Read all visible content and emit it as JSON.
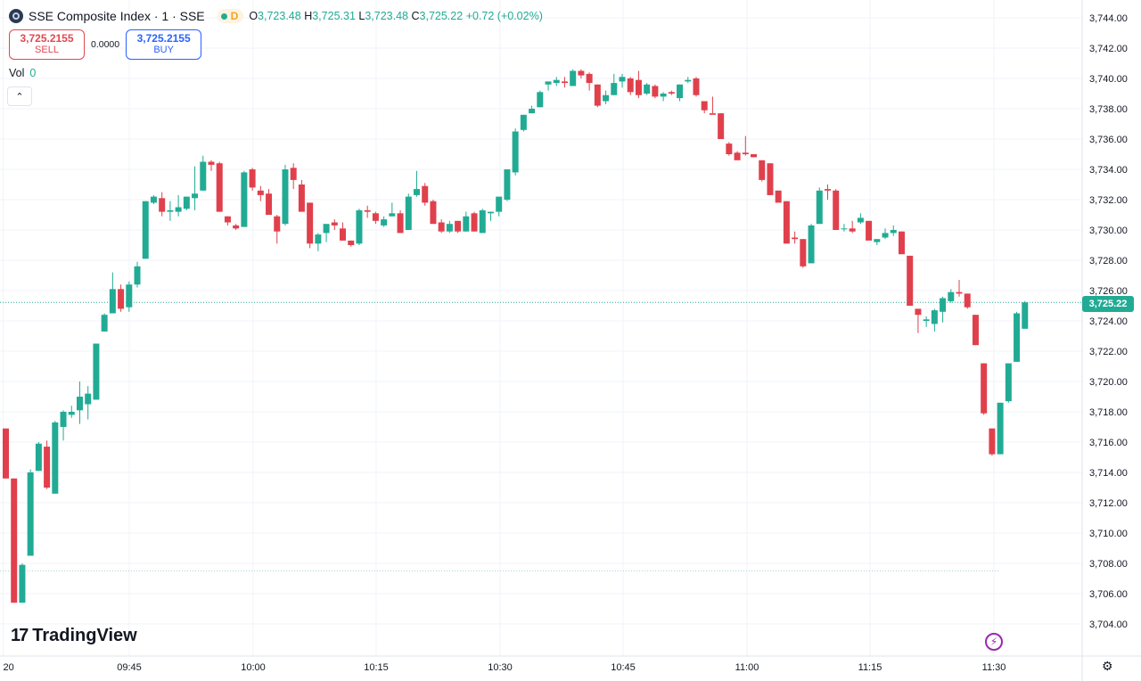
{
  "header": {
    "title": "SSE Composite Index · 1 · SSE",
    "badge": "D",
    "ohlc": {
      "o_label": "O",
      "o_value": "3,723.48",
      "h_label": "H",
      "h_value": "3,725.31",
      "l_label": "L",
      "l_value": "3,723.48",
      "c_label": "C",
      "c_value": "3,725.22",
      "change": "+0.72 (+0.02%)"
    }
  },
  "trade": {
    "sell_price": "3,725.2155",
    "sell_label": "SELL",
    "spread": "0.0000",
    "buy_price": "3,725.2155",
    "buy_label": "BUY"
  },
  "volume": {
    "label": "Vol",
    "value": "0"
  },
  "branding": {
    "name": "TradingView"
  },
  "last_price_label": "3,725.22",
  "colors": {
    "up": "#22ab94",
    "down": "#e0404c",
    "grid": "#f0f3fa",
    "axis_text": "#131722"
  },
  "icons": {
    "collapse": "chevron-up-icon",
    "bolt": "lightning-icon",
    "settings": "gear-icon"
  },
  "chart_data": {
    "type": "candlestick",
    "ylim": [
      3703,
      3745
    ],
    "y_ticks": [
      "3,704.00",
      "3,706.00",
      "3,708.00",
      "3,710.00",
      "3,712.00",
      "3,714.00",
      "3,716.00",
      "3,718.00",
      "3,720.00",
      "3,722.00",
      "3,724.00",
      "3,726.00",
      "3,728.00",
      "3,730.00",
      "3,732.00",
      "3,734.00",
      "3,736.00",
      "3,738.00",
      "3,740.00",
      "3,742.00",
      "3,744.00"
    ],
    "x_ticks": [
      "20",
      "09:45",
      "10:00",
      "10:15",
      "10:30",
      "10:45",
      "11:00",
      "11:15",
      "11:30"
    ],
    "last_close": 3725.22,
    "reference_line": 3707.5,
    "candles": [
      [
        3716.9,
        3716.9,
        3713.6,
        3713.6
      ],
      [
        3713.6,
        3713.6,
        3705.4,
        3705.4
      ],
      [
        3705.4,
        3708.0,
        3705.4,
        3707.9
      ],
      [
        3708.5,
        3714.2,
        3708.5,
        3714.0
      ],
      [
        3714.1,
        3716.0,
        3714.1,
        3715.9
      ],
      [
        3715.7,
        3716.1,
        3712.9,
        3713.0
      ],
      [
        3712.6,
        3717.4,
        3712.6,
        3717.3
      ],
      [
        3717.0,
        3718.1,
        3716.1,
        3718.0
      ],
      [
        3717.8,
        3718.4,
        3717.6,
        3718.0
      ],
      [
        3718.1,
        3720.0,
        3717.2,
        3719.0
      ],
      [
        3718.5,
        3719.7,
        3717.5,
        3719.2
      ],
      [
        3718.8,
        3722.5,
        3718.8,
        3722.5
      ],
      [
        3723.3,
        3724.5,
        3723.3,
        3724.4
      ],
      [
        3724.5,
        3727.2,
        3724.5,
        3726.1
      ],
      [
        3726.1,
        3726.4,
        3724.6,
        3724.8
      ],
      [
        3724.9,
        3726.6,
        3724.6,
        3726.4
      ],
      [
        3726.4,
        3727.9,
        3726.2,
        3727.6
      ],
      [
        3728.1,
        3731.9,
        3728.1,
        3731.9
      ],
      [
        3731.8,
        3732.3,
        3731.7,
        3732.2
      ],
      [
        3732.1,
        3732.5,
        3730.9,
        3731.2
      ],
      [
        3731.2,
        3731.9,
        3730.6,
        3731.3
      ],
      [
        3731.2,
        3732.3,
        3730.9,
        3731.5
      ],
      [
        3731.4,
        3732.2,
        3731.3,
        3732.2
      ],
      [
        3732.1,
        3734.2,
        3731.3,
        3732.4
      ],
      [
        3732.6,
        3734.9,
        3732.6,
        3734.5
      ],
      [
        3734.5,
        3734.6,
        3733.9,
        3734.3
      ],
      [
        3734.4,
        3734.5,
        3731.2,
        3731.2
      ],
      [
        3730.9,
        3730.9,
        3730.3,
        3730.5
      ],
      [
        3730.3,
        3730.4,
        3730.0,
        3730.1
      ],
      [
        3730.2,
        3733.9,
        3730.2,
        3733.8
      ],
      [
        3734.0,
        3734.1,
        3732.6,
        3732.8
      ],
      [
        3732.6,
        3732.9,
        3731.9,
        3732.3
      ],
      [
        3732.4,
        3732.7,
        3731.0,
        3731.0
      ],
      [
        3730.9,
        3731.0,
        3729.1,
        3729.9
      ],
      [
        3730.4,
        3734.3,
        3730.3,
        3734.0
      ],
      [
        3734.1,
        3734.4,
        3732.7,
        3733.3
      ],
      [
        3733.0,
        3733.3,
        3731.3,
        3731.2
      ],
      [
        3731.8,
        3731.8,
        3728.8,
        3729.1
      ],
      [
        3729.1,
        3729.8,
        3728.6,
        3729.7
      ],
      [
        3729.8,
        3730.2,
        3729.2,
        3730.4
      ],
      [
        3730.5,
        3730.7,
        3730.0,
        3730.3
      ],
      [
        3730.1,
        3730.5,
        3729.3,
        3729.3
      ],
      [
        3729.3,
        3729.3,
        3728.9,
        3729.0
      ],
      [
        3729.1,
        3731.4,
        3729.0,
        3731.3
      ],
      [
        3731.3,
        3731.6,
        3730.8,
        3731.2
      ],
      [
        3731.1,
        3731.2,
        3730.4,
        3730.6
      ],
      [
        3730.3,
        3730.9,
        3730.2,
        3730.7
      ],
      [
        3730.9,
        3731.8,
        3730.9,
        3731.1
      ],
      [
        3731.1,
        3731.3,
        3729.8,
        3729.8
      ],
      [
        3730.0,
        3732.4,
        3730.0,
        3732.2
      ],
      [
        3732.3,
        3733.9,
        3732.2,
        3732.7
      ],
      [
        3732.9,
        3733.1,
        3731.6,
        3731.8
      ],
      [
        3731.9,
        3732.0,
        3730.5,
        3730.4
      ],
      [
        3730.5,
        3730.7,
        3729.8,
        3729.9
      ],
      [
        3729.9,
        3730.6,
        3729.8,
        3730.4
      ],
      [
        3730.6,
        3730.6,
        3729.8,
        3729.9
      ],
      [
        3729.9,
        3731.2,
        3729.9,
        3730.9
      ],
      [
        3731.1,
        3731.2,
        3729.9,
        3729.9
      ],
      [
        3729.8,
        3731.4,
        3729.8,
        3731.3
      ],
      [
        3731.1,
        3731.2,
        3730.6,
        3731.2
      ],
      [
        3731.2,
        3732.1,
        3730.9,
        3732.2
      ],
      [
        3732.0,
        3734.0,
        3731.9,
        3734.0
      ],
      [
        3733.8,
        3736.7,
        3733.6,
        3736.5
      ],
      [
        3736.6,
        3737.6,
        3736.5,
        3737.6
      ],
      [
        3737.7,
        3738.2,
        3737.7,
        3738.0
      ],
      [
        3738.1,
        3739.2,
        3738.1,
        3739.1
      ],
      [
        3739.6,
        3739.8,
        3739.2,
        3739.8
      ],
      [
        3739.7,
        3740.1,
        3739.5,
        3739.9
      ],
      [
        3739.8,
        3740.1,
        3739.4,
        3739.7
      ],
      [
        3739.5,
        3740.6,
        3739.5,
        3740.5
      ],
      [
        3740.5,
        3740.6,
        3740.0,
        3740.2
      ],
      [
        3740.3,
        3740.4,
        3739.2,
        3739.7
      ],
      [
        3739.6,
        3739.6,
        3738.1,
        3738.2
      ],
      [
        3738.5,
        3739.2,
        3738.3,
        3738.9
      ],
      [
        3738.9,
        3740.3,
        3738.9,
        3739.7
      ],
      [
        3739.8,
        3740.3,
        3739.4,
        3740.1
      ],
      [
        3740.0,
        3740.1,
        3738.9,
        3739.1
      ],
      [
        3739.9,
        3740.5,
        3738.7,
        3738.9
      ],
      [
        3739.0,
        3739.7,
        3738.9,
        3739.6
      ],
      [
        3739.5,
        3739.6,
        3738.7,
        3738.8
      ],
      [
        3738.8,
        3739.1,
        3738.5,
        3739.0
      ],
      [
        3739.1,
        3739.2,
        3738.9,
        3739.0
      ],
      [
        3738.7,
        3739.6,
        3738.5,
        3739.6
      ],
      [
        3739.8,
        3740.1,
        3739.7,
        3739.9
      ],
      [
        3740.0,
        3740.1,
        3738.8,
        3738.9
      ],
      [
        3738.5,
        3738.5,
        3737.7,
        3737.9
      ],
      [
        3737.7,
        3738.8,
        3737.7,
        3737.6
      ],
      [
        3737.7,
        3737.7,
        3736.0,
        3736.0
      ],
      [
        3735.7,
        3735.8,
        3734.9,
        3735.0
      ],
      [
        3735.1,
        3735.2,
        3734.7,
        3734.6
      ],
      [
        3735.1,
        3736.2,
        3734.9,
        3735.0
      ],
      [
        3735.0,
        3735.0,
        3734.8,
        3734.8
      ],
      [
        3734.6,
        3734.6,
        3733.2,
        3733.3
      ],
      [
        3734.4,
        3734.4,
        3732.3,
        3732.3
      ],
      [
        3732.6,
        3732.6,
        3731.9,
        3731.8
      ],
      [
        3731.9,
        3731.9,
        3729.1,
        3729.1
      ],
      [
        3729.5,
        3729.9,
        3729.1,
        3729.4
      ],
      [
        3729.4,
        3729.4,
        3727.5,
        3727.6
      ],
      [
        3727.8,
        3730.4,
        3727.8,
        3730.3
      ],
      [
        3730.4,
        3732.8,
        3730.4,
        3732.6
      ],
      [
        3732.7,
        3733.0,
        3732.0,
        3732.6
      ],
      [
        3732.6,
        3732.7,
        3730.0,
        3730.0
      ],
      [
        3730.1,
        3730.4,
        3729.9,
        3730.1
      ],
      [
        3730.1,
        3730.6,
        3729.8,
        3729.9
      ],
      [
        3730.5,
        3731.1,
        3730.4,
        3730.8
      ],
      [
        3730.6,
        3730.6,
        3729.4,
        3729.3
      ],
      [
        3729.2,
        3729.4,
        3729.0,
        3729.4
      ],
      [
        3729.5,
        3730.1,
        3729.4,
        3729.8
      ],
      [
        3729.8,
        3730.3,
        3729.6,
        3730.0
      ],
      [
        3729.9,
        3729.9,
        3728.4,
        3728.4
      ],
      [
        3728.3,
        3728.3,
        3725.2,
        3725.0
      ],
      [
        3724.8,
        3724.8,
        3723.2,
        3724.4
      ],
      [
        3724.0,
        3724.3,
        3723.6,
        3724.1
      ],
      [
        3723.8,
        3724.8,
        3723.3,
        3724.7
      ],
      [
        3724.6,
        3725.6,
        3723.9,
        3725.5
      ],
      [
        3725.3,
        3726.1,
        3725.2,
        3725.9
      ],
      [
        3725.9,
        3726.7,
        3725.6,
        3725.8
      ],
      [
        3725.8,
        3725.8,
        3724.8,
        3724.9
      ],
      [
        3724.4,
        3724.4,
        3722.4,
        3722.4
      ],
      [
        3721.2,
        3721.2,
        3717.8,
        3717.9
      ],
      [
        3716.9,
        3716.9,
        3715.1,
        3715.2
      ],
      [
        3715.2,
        3718.6,
        3715.2,
        3718.6
      ],
      [
        3718.7,
        3721.2,
        3718.6,
        3721.2
      ],
      [
        3721.3,
        3724.6,
        3721.3,
        3724.5
      ],
      [
        3723.48,
        3725.31,
        3723.48,
        3725.22
      ]
    ]
  }
}
